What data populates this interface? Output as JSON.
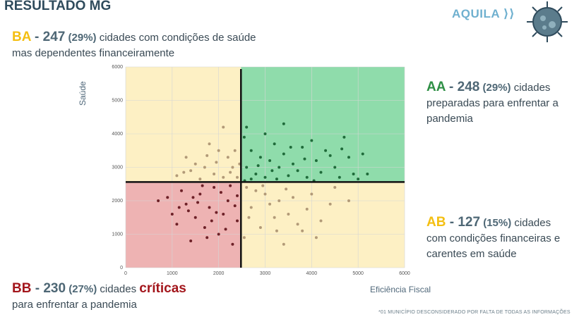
{
  "title": "RESULTADO MG",
  "logo_text": "AQUILA",
  "quadrants": {
    "ba": {
      "code": "BA",
      "sep": " - ",
      "count": "247",
      "pct": "(29%)",
      "text": "cidades com condições de saúde mas dependentes financeiramente"
    },
    "aa": {
      "code": "AA",
      "sep": " - ",
      "count": "248",
      "pct": "(29%)",
      "text": "cidades preparadas para enfrentar a pandemia"
    },
    "ab": {
      "code": "AB",
      "sep": " - ",
      "count": "127",
      "pct": "(15%)",
      "text": "cidades com condições financeiras e carentes em saúde"
    },
    "bb": {
      "code": "BB",
      "sep": " - ",
      "count": "230",
      "pct": "(27%)",
      "text_pre": "cidades",
      "critical": "críticas",
      "text_post": "para enfrentar a pandemia"
    }
  },
  "footnote": "*01 MUNICÍPIO DESCONSIDERADO POR FALTA DE TODAS AS INFORMAÇÕES",
  "colors": {
    "yellow": "#f4bf12",
    "green": "#2e8f45",
    "red": "#a3161c",
    "bg_yellow": "#fdf0c4",
    "bg_green": "#8fdcab",
    "bg_red": "#eeb3b3",
    "pt_tan": "#b29a78",
    "pt_green": "#1f6b3a",
    "pt_red": "#6d2027"
  },
  "chart_data": {
    "type": "scatter",
    "xlabel": "Eficiência Fiscal",
    "ylabel": "Saúde",
    "xlim": [
      0,
      6000
    ],
    "ylim": [
      0,
      6000
    ],
    "xticks": [
      0,
      1000,
      2000,
      3000,
      4000,
      5000,
      6000
    ],
    "yticks": [
      0,
      1000,
      2000,
      3000,
      4000,
      5000,
      6000
    ],
    "grid": true,
    "threshold_x": 2480,
    "threshold_y": 2560,
    "series": [
      {
        "quadrant": "AA",
        "points": [
          [
            2600,
            4200
          ],
          [
            2550,
            3900
          ],
          [
            3000,
            4000
          ],
          [
            3400,
            4300
          ],
          [
            3200,
            3700
          ],
          [
            4000,
            3800
          ],
          [
            4700,
            3900
          ],
          [
            3800,
            3600
          ],
          [
            4300,
            3500
          ],
          [
            2700,
            3500
          ],
          [
            2900,
            3300
          ],
          [
            3100,
            3200
          ],
          [
            3300,
            3000
          ],
          [
            3600,
            3100
          ],
          [
            4100,
            3200
          ],
          [
            4500,
            3000
          ],
          [
            4800,
            3300
          ],
          [
            5100,
            3400
          ],
          [
            5200,
            2800
          ],
          [
            2600,
            3000
          ],
          [
            2800,
            2800
          ],
          [
            3000,
            2700
          ],
          [
            3500,
            2750
          ],
          [
            3900,
            2700
          ],
          [
            4200,
            2850
          ],
          [
            4600,
            2700
          ],
          [
            4900,
            2800
          ],
          [
            3700,
            2900
          ],
          [
            3400,
            3400
          ],
          [
            4400,
            3350
          ],
          [
            2700,
            2650
          ],
          [
            3150,
            2900
          ],
          [
            3850,
            3250
          ],
          [
            4650,
            3550
          ],
          [
            5000,
            2650
          ],
          [
            2560,
            2600
          ],
          [
            3250,
            2650
          ],
          [
            4050,
            2600
          ],
          [
            3550,
            3600
          ],
          [
            2850,
            3050
          ]
        ]
      },
      {
        "quadrant": "BA",
        "points": [
          [
            2100,
            4200
          ],
          [
            1800,
            3700
          ],
          [
            2000,
            3500
          ],
          [
            1300,
            3300
          ],
          [
            1500,
            3100
          ],
          [
            2200,
            3300
          ],
          [
            1700,
            3000
          ],
          [
            2300,
            3000
          ],
          [
            1100,
            2750
          ],
          [
            1900,
            2800
          ],
          [
            2400,
            2700
          ],
          [
            1400,
            2900
          ],
          [
            2100,
            2700
          ],
          [
            1600,
            2650
          ],
          [
            2350,
            3500
          ],
          [
            1950,
            3150
          ],
          [
            1250,
            2850
          ],
          [
            2250,
            2850
          ],
          [
            1750,
            3350
          ],
          [
            2450,
            3100
          ]
        ]
      },
      {
        "quadrant": "AB",
        "points": [
          [
            2600,
            2400
          ],
          [
            2800,
            2300
          ],
          [
            3000,
            2200
          ],
          [
            3300,
            2000
          ],
          [
            3600,
            2100
          ],
          [
            4000,
            2200
          ],
          [
            4400,
            1900
          ],
          [
            3500,
            1600
          ],
          [
            3200,
            1500
          ],
          [
            2900,
            1200
          ],
          [
            3800,
            1100
          ],
          [
            4200,
            1400
          ],
          [
            3400,
            700
          ],
          [
            3700,
            1300
          ],
          [
            2700,
            1800
          ],
          [
            3100,
            1900
          ],
          [
            4500,
            2400
          ],
          [
            4800,
            2000
          ],
          [
            4100,
            900
          ],
          [
            2550,
            900
          ],
          [
            3450,
            2350
          ],
          [
            2650,
            1500
          ],
          [
            3900,
            1750
          ],
          [
            2950,
            2450
          ],
          [
            3250,
            1100
          ]
        ]
      },
      {
        "quadrant": "BB",
        "points": [
          [
            700,
            2000
          ],
          [
            900,
            2100
          ],
          [
            1000,
            1600
          ],
          [
            1100,
            1300
          ],
          [
            1200,
            2300
          ],
          [
            1300,
            1900
          ],
          [
            1400,
            800
          ],
          [
            1500,
            1500
          ],
          [
            1600,
            2200
          ],
          [
            1700,
            1200
          ],
          [
            1800,
            1800
          ],
          [
            1900,
            2400
          ],
          [
            2000,
            1000
          ],
          [
            2100,
            1600
          ],
          [
            2200,
            2000
          ],
          [
            2300,
            700
          ],
          [
            2400,
            1400
          ],
          [
            1650,
            2450
          ],
          [
            1850,
            1400
          ],
          [
            2050,
            2250
          ],
          [
            2150,
            1150
          ],
          [
            1550,
            1950
          ],
          [
            2350,
            1850
          ],
          [
            1350,
            1700
          ],
          [
            1750,
            900
          ],
          [
            2250,
            2450
          ],
          [
            1950,
            1650
          ],
          [
            1450,
            2100
          ],
          [
            1150,
            1800
          ],
          [
            2400,
            2150
          ]
        ]
      }
    ]
  }
}
